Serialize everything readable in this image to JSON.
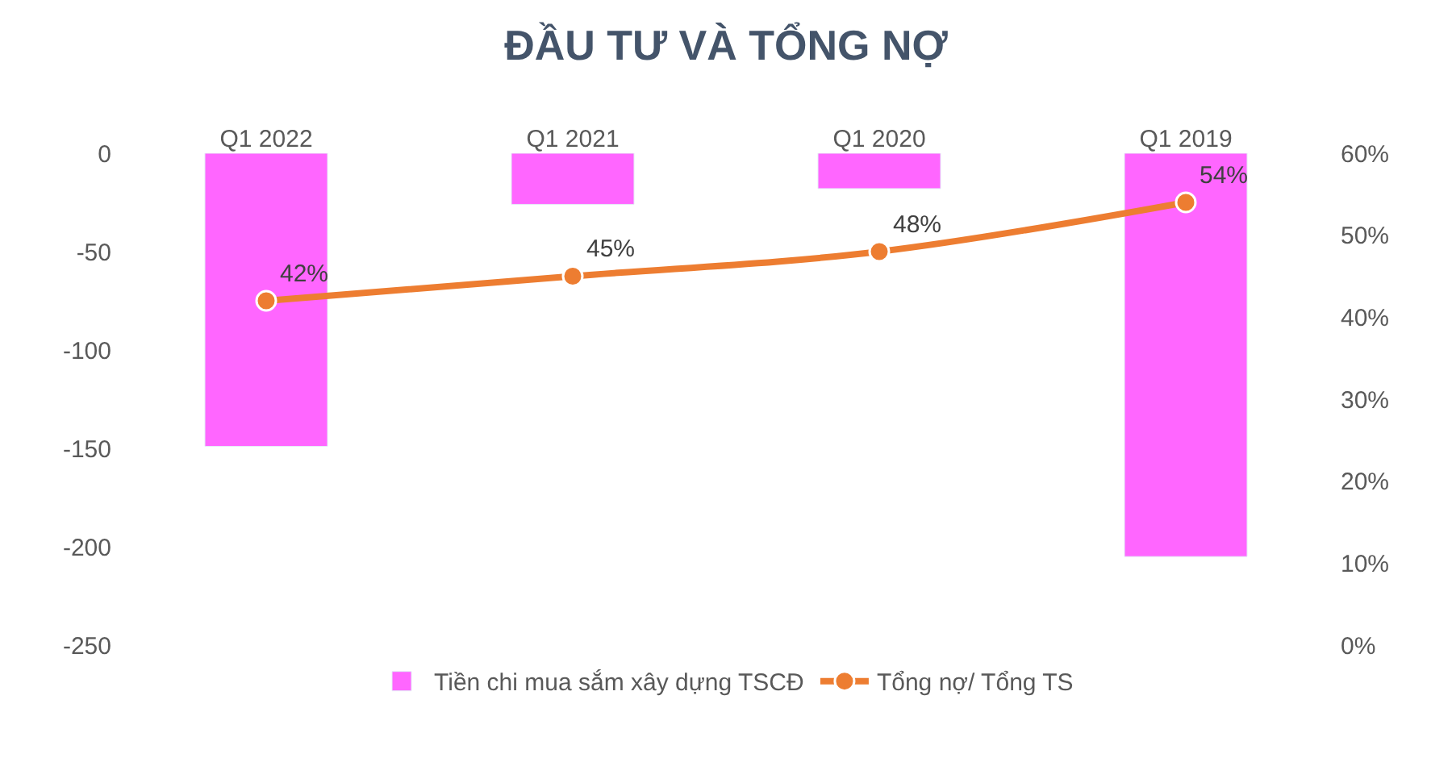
{
  "chart_data": {
    "type": "bar",
    "title": "ĐẦU TƯ VÀ TỔNG NỢ",
    "categories": [
      "Q1 2022",
      "Q1 2021",
      "Q1 2020",
      "Q1 2019"
    ],
    "series": [
      {
        "name": "Tiền chi mua sắm xây dựng TSCĐ",
        "color": "#ff66ff",
        "values": [
          -149,
          -26,
          -18,
          -205
        ]
      },
      {
        "name": "Tổng nợ/ Tổng TS",
        "type": "line",
        "axis": "y2",
        "color": "#ed7d31",
        "marker": "circle",
        "values": [
          42,
          45,
          48,
          54
        ],
        "value_labels": [
          "42%",
          "45%",
          "48%",
          "54%"
        ]
      }
    ],
    "ylim": [
      -250,
      0
    ],
    "yticks": [
      0,
      -50,
      -100,
      -150,
      -200,
      -250
    ],
    "y2lim": [
      0,
      60
    ],
    "y2ticks": [
      {
        "value": 0,
        "label": "0%"
      },
      {
        "value": 10,
        "label": "10%"
      },
      {
        "value": 20,
        "label": "20%"
      },
      {
        "value": 30,
        "label": "30%"
      },
      {
        "value": 40,
        "label": "40%"
      },
      {
        "value": 50,
        "label": "50%"
      },
      {
        "value": 60,
        "label": "60%"
      }
    ],
    "legend": "bottom"
  }
}
